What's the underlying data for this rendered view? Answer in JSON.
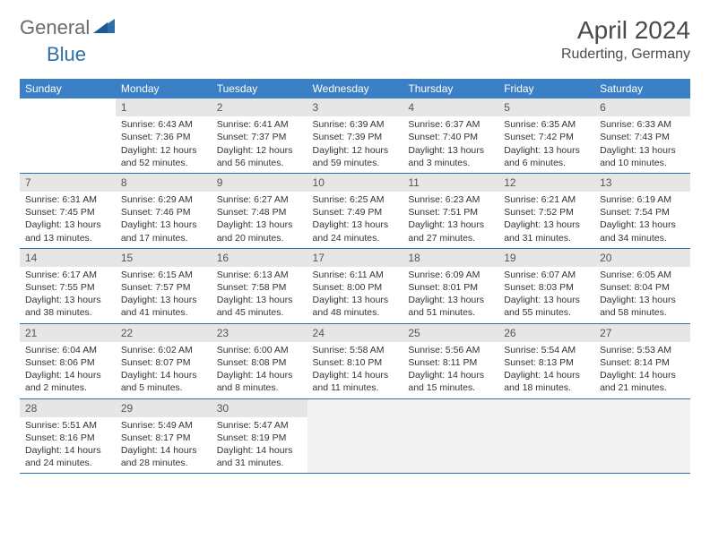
{
  "brand": {
    "part1": "General",
    "part2": "Blue"
  },
  "title": "April 2024",
  "location": "Ruderting, Germany",
  "colors": {
    "header_bg": "#3b7fc4",
    "header_fg": "#ffffff",
    "daynum_bg": "#e6e6e6",
    "rule": "#2f6fa8",
    "brand_gray": "#6b6b6b",
    "brand_blue": "#2f6fa8"
  },
  "weekdays": [
    "Sunday",
    "Monday",
    "Tuesday",
    "Wednesday",
    "Thursday",
    "Friday",
    "Saturday"
  ],
  "start_offset": 1,
  "days": [
    {
      "n": 1,
      "sunrise": "6:43 AM",
      "sunset": "7:36 PM",
      "daylight": "12 hours and 52 minutes."
    },
    {
      "n": 2,
      "sunrise": "6:41 AM",
      "sunset": "7:37 PM",
      "daylight": "12 hours and 56 minutes."
    },
    {
      "n": 3,
      "sunrise": "6:39 AM",
      "sunset": "7:39 PM",
      "daylight": "12 hours and 59 minutes."
    },
    {
      "n": 4,
      "sunrise": "6:37 AM",
      "sunset": "7:40 PM",
      "daylight": "13 hours and 3 minutes."
    },
    {
      "n": 5,
      "sunrise": "6:35 AM",
      "sunset": "7:42 PM",
      "daylight": "13 hours and 6 minutes."
    },
    {
      "n": 6,
      "sunrise": "6:33 AM",
      "sunset": "7:43 PM",
      "daylight": "13 hours and 10 minutes."
    },
    {
      "n": 7,
      "sunrise": "6:31 AM",
      "sunset": "7:45 PM",
      "daylight": "13 hours and 13 minutes."
    },
    {
      "n": 8,
      "sunrise": "6:29 AM",
      "sunset": "7:46 PM",
      "daylight": "13 hours and 17 minutes."
    },
    {
      "n": 9,
      "sunrise": "6:27 AM",
      "sunset": "7:48 PM",
      "daylight": "13 hours and 20 minutes."
    },
    {
      "n": 10,
      "sunrise": "6:25 AM",
      "sunset": "7:49 PM",
      "daylight": "13 hours and 24 minutes."
    },
    {
      "n": 11,
      "sunrise": "6:23 AM",
      "sunset": "7:51 PM",
      "daylight": "13 hours and 27 minutes."
    },
    {
      "n": 12,
      "sunrise": "6:21 AM",
      "sunset": "7:52 PM",
      "daylight": "13 hours and 31 minutes."
    },
    {
      "n": 13,
      "sunrise": "6:19 AM",
      "sunset": "7:54 PM",
      "daylight": "13 hours and 34 minutes."
    },
    {
      "n": 14,
      "sunrise": "6:17 AM",
      "sunset": "7:55 PM",
      "daylight": "13 hours and 38 minutes."
    },
    {
      "n": 15,
      "sunrise": "6:15 AM",
      "sunset": "7:57 PM",
      "daylight": "13 hours and 41 minutes."
    },
    {
      "n": 16,
      "sunrise": "6:13 AM",
      "sunset": "7:58 PM",
      "daylight": "13 hours and 45 minutes."
    },
    {
      "n": 17,
      "sunrise": "6:11 AM",
      "sunset": "8:00 PM",
      "daylight": "13 hours and 48 minutes."
    },
    {
      "n": 18,
      "sunrise": "6:09 AM",
      "sunset": "8:01 PM",
      "daylight": "13 hours and 51 minutes."
    },
    {
      "n": 19,
      "sunrise": "6:07 AM",
      "sunset": "8:03 PM",
      "daylight": "13 hours and 55 minutes."
    },
    {
      "n": 20,
      "sunrise": "6:05 AM",
      "sunset": "8:04 PM",
      "daylight": "13 hours and 58 minutes."
    },
    {
      "n": 21,
      "sunrise": "6:04 AM",
      "sunset": "8:06 PM",
      "daylight": "14 hours and 2 minutes."
    },
    {
      "n": 22,
      "sunrise": "6:02 AM",
      "sunset": "8:07 PM",
      "daylight": "14 hours and 5 minutes."
    },
    {
      "n": 23,
      "sunrise": "6:00 AM",
      "sunset": "8:08 PM",
      "daylight": "14 hours and 8 minutes."
    },
    {
      "n": 24,
      "sunrise": "5:58 AM",
      "sunset": "8:10 PM",
      "daylight": "14 hours and 11 minutes."
    },
    {
      "n": 25,
      "sunrise": "5:56 AM",
      "sunset": "8:11 PM",
      "daylight": "14 hours and 15 minutes."
    },
    {
      "n": 26,
      "sunrise": "5:54 AM",
      "sunset": "8:13 PM",
      "daylight": "14 hours and 18 minutes."
    },
    {
      "n": 27,
      "sunrise": "5:53 AM",
      "sunset": "8:14 PM",
      "daylight": "14 hours and 21 minutes."
    },
    {
      "n": 28,
      "sunrise": "5:51 AM",
      "sunset": "8:16 PM",
      "daylight": "14 hours and 24 minutes."
    },
    {
      "n": 29,
      "sunrise": "5:49 AM",
      "sunset": "8:17 PM",
      "daylight": "14 hours and 28 minutes."
    },
    {
      "n": 30,
      "sunrise": "5:47 AM",
      "sunset": "8:19 PM",
      "daylight": "14 hours and 31 minutes."
    }
  ]
}
